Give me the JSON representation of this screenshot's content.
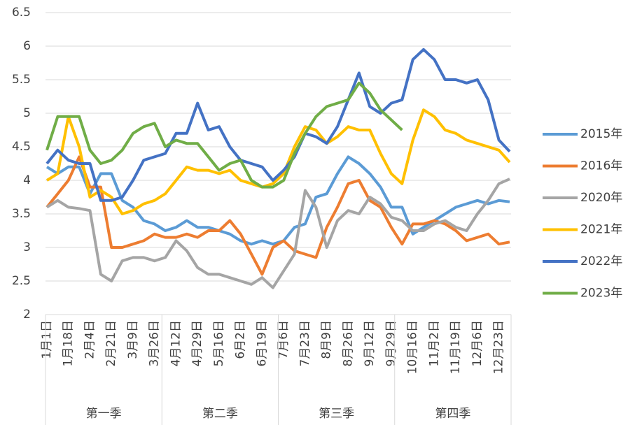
{
  "chart_data": {
    "type": "line",
    "categories": [
      "1月1日",
      null,
      "1月18日",
      null,
      "2月4日",
      null,
      "2月21日",
      null,
      "3月9日",
      null,
      "3月26日",
      null,
      "4月12日",
      null,
      "4月29日",
      null,
      "5月16日",
      null,
      "6月2日",
      null,
      "6月19日",
      null,
      "7月6日",
      null,
      "7月23日",
      null,
      "8月9日",
      null,
      "8月26日",
      null,
      "9月12日",
      null,
      "9月29日",
      null,
      "10月16日",
      null,
      "11月2日",
      null,
      "11月19日",
      null,
      "12月6日",
      null,
      "12月23日",
      null
    ],
    "groups": [
      "第一季",
      "第二季",
      "第三季",
      "第四季"
    ],
    "series": [
      {
        "name": "2015年",
        "color": "#5b9bd5",
        "values": [
          4.2,
          4.1,
          4.2,
          4.2,
          3.8,
          4.1,
          4.1,
          3.7,
          3.6,
          3.4,
          3.35,
          3.25,
          3.3,
          3.4,
          3.3,
          3.3,
          3.25,
          3.2,
          3.1,
          3.05,
          3.1,
          3.05,
          3.1,
          3.3,
          3.35,
          3.75,
          3.8,
          4.1,
          4.35,
          4.25,
          4.1,
          3.9,
          3.6,
          3.6,
          3.2,
          3.3,
          3.4,
          3.5,
          3.6,
          3.65,
          3.7,
          3.65,
          3.7,
          3.68
        ]
      },
      {
        "name": "2016年",
        "color": "#ed7d31",
        "values": [
          3.6,
          3.8,
          4.0,
          4.35,
          3.9,
          3.9,
          3.0,
          3.0,
          3.05,
          3.1,
          3.2,
          3.15,
          3.15,
          3.2,
          3.15,
          3.25,
          3.25,
          3.4,
          3.2,
          2.9,
          2.6,
          3.0,
          3.1,
          2.95,
          2.9,
          2.85,
          3.3,
          3.6,
          3.95,
          4.0,
          3.7,
          3.6,
          3.3,
          3.05,
          3.35,
          3.35,
          3.4,
          3.35,
          3.25,
          3.1,
          3.15,
          3.2,
          3.05,
          3.08
        ]
      },
      {
        "name": "2020年",
        "color": "#a5a5a5",
        "values": [
          3.6,
          3.7,
          3.6,
          3.58,
          3.55,
          2.6,
          2.5,
          2.8,
          2.85,
          2.85,
          2.8,
          2.85,
          3.1,
          2.95,
          2.7,
          2.6,
          2.6,
          2.55,
          2.5,
          2.45,
          2.55,
          2.4,
          2.65,
          2.9,
          3.85,
          3.6,
          3.0,
          3.4,
          3.55,
          3.5,
          3.75,
          3.65,
          3.45,
          3.4,
          3.25,
          3.25,
          3.35,
          3.4,
          3.3,
          3.25,
          3.5,
          3.7,
          3.95,
          4.02
        ]
      },
      {
        "name": "2021年",
        "color": "#ffc000",
        "values": [
          4.0,
          4.1,
          4.95,
          4.5,
          3.75,
          3.85,
          3.75,
          3.5,
          3.55,
          3.65,
          3.7,
          3.8,
          4.0,
          4.2,
          4.15,
          4.15,
          4.1,
          4.15,
          4.0,
          3.95,
          3.9,
          3.95,
          4.1,
          4.5,
          4.8,
          4.75,
          4.55,
          4.65,
          4.8,
          4.75,
          4.75,
          4.4,
          4.1,
          3.95,
          4.6,
          5.05,
          4.95,
          4.75,
          4.7,
          4.6,
          4.55,
          4.5,
          4.45,
          4.27
        ]
      },
      {
        "name": "2022年",
        "color": "#4472c4",
        "values": [
          4.25,
          4.45,
          4.3,
          4.25,
          4.25,
          3.7,
          3.7,
          3.75,
          4.0,
          4.3,
          4.35,
          4.4,
          4.7,
          4.7,
          5.15,
          4.75,
          4.8,
          4.5,
          4.3,
          4.25,
          4.2,
          4.0,
          4.15,
          4.35,
          4.7,
          4.65,
          4.55,
          4.8,
          5.2,
          5.6,
          5.1,
          5.0,
          5.15,
          5.2,
          5.8,
          5.95,
          5.8,
          5.5,
          5.5,
          5.45,
          5.5,
          5.2,
          4.6,
          4.43
        ]
      },
      {
        "name": "2023年",
        "color": "#70ad47",
        "values": [
          4.45,
          4.95,
          4.95,
          4.95,
          4.45,
          4.25,
          4.3,
          4.45,
          4.7,
          4.8,
          4.85,
          4.5,
          4.6,
          4.55,
          4.55,
          4.35,
          4.15,
          4.25,
          4.3,
          4.0,
          3.9,
          3.9,
          4.0,
          4.4,
          4.7,
          4.95,
          5.1,
          5.15,
          5.2,
          5.45,
          5.3,
          5.05,
          4.9,
          4.75,
          null,
          null,
          null,
          null,
          null,
          null,
          null,
          null,
          null,
          null
        ]
      }
    ],
    "ylim": [
      2,
      6.5
    ],
    "yticks": [
      2,
      2.5,
      3,
      3.5,
      4,
      4.5,
      5,
      5.5,
      6,
      6.5
    ],
    "grid": true,
    "legend": "right"
  }
}
